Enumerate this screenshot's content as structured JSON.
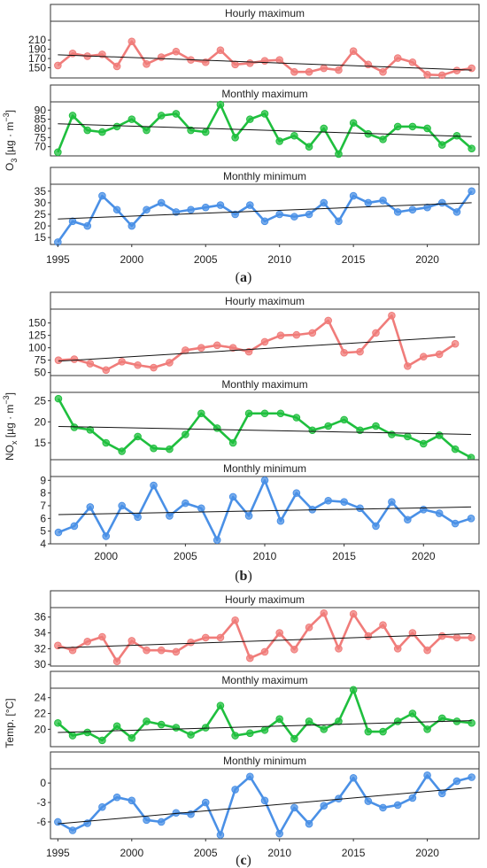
{
  "captions": [
    "(a)",
    "(b)",
    "(c)"
  ],
  "caption_letters": [
    "a",
    "b",
    "c"
  ],
  "colors": {
    "hourly_max": "#f07c7a",
    "monthly_max": "#1fbf3e",
    "monthly_min": "#4a90e6",
    "trend": "#111111"
  },
  "chart_data": [
    {
      "type": "line",
      "figure": "a",
      "ylabel": "O3 [µg·m⁻³]",
      "ylabel_base": "O",
      "ylabel_sub": "3",
      "ylabel_rest": " [µg · m",
      "ylabel_sup": "−3",
      "ylabel_close": "]",
      "x_ticks": [
        "1995",
        "2000",
        "2005",
        "2010",
        "2015",
        "2020"
      ],
      "xlim": [
        1994.5,
        2023.5
      ],
      "x": [
        1995,
        1996,
        1997,
        1998,
        1999,
        2000,
        2001,
        2002,
        2003,
        2004,
        2005,
        2006,
        2007,
        2008,
        2009,
        2010,
        2011,
        2012,
        2013,
        2014,
        2015,
        2016,
        2017,
        2018,
        2019,
        2020,
        2021,
        2022,
        2023
      ],
      "panels": [
        {
          "strip": "Hourly maximum",
          "color_key": "hourly_max",
          "ylim": [
            128,
            218
          ],
          "y_ticks": [
            "150",
            "170",
            "190",
            "210"
          ],
          "values": [
            155,
            181,
            175,
            179,
            153,
            207,
            158,
            173,
            185,
            167,
            162,
            188,
            157,
            160,
            165,
            167,
            141,
            141,
            149,
            145,
            186,
            157,
            141,
            171,
            162,
            135,
            134,
            144,
            149
          ],
          "trend": [
            178,
            145
          ]
        },
        {
          "strip": "Monthly maximum",
          "color_key": "monthly_max",
          "ylim": [
            65,
            94
          ],
          "y_ticks": [
            "70",
            "75",
            "80",
            "85",
            "90"
          ],
          "values": [
            67,
            87,
            79,
            78,
            81,
            85,
            79,
            87,
            88,
            79,
            78,
            93,
            75,
            85,
            88,
            73,
            76,
            70,
            80,
            66,
            83,
            77,
            74,
            81,
            81,
            80,
            71,
            76,
            69
          ],
          "trend": [
            82.5,
            75.5
          ]
        },
        {
          "strip": "Monthly minimum",
          "color_key": "monthly_min",
          "ylim": [
            12,
            38
          ],
          "y_ticks": [
            "15",
            "20",
            "25",
            "30",
            "35"
          ],
          "values": [
            13,
            22,
            20,
            33,
            27,
            20,
            27,
            30,
            26,
            27,
            28,
            29,
            25,
            29,
            22,
            25,
            24,
            25,
            30,
            22,
            33,
            30,
            31,
            26,
            27,
            28,
            30,
            26,
            35
          ],
          "trend": [
            23,
            30
          ]
        }
      ]
    },
    {
      "type": "line",
      "figure": "b",
      "ylabel": "NOx [µg·m⁻³]",
      "ylabel_base": "NO",
      "ylabel_sub": "x",
      "ylabel_rest": " [µg · m",
      "ylabel_sup": "−3",
      "ylabel_close": "]",
      "x_ticks": [
        "2000",
        "2005",
        "2010",
        "2015",
        "2020"
      ],
      "xlim": [
        1996.5,
        2023.5
      ],
      "x": [
        1997,
        1998,
        1999,
        2000,
        2001,
        2002,
        2003,
        2004,
        2005,
        2006,
        2007,
        2008,
        2009,
        2010,
        2011,
        2012,
        2013,
        2014,
        2015,
        2016,
        2017,
        2018,
        2019,
        2020,
        2021,
        2022,
        2023
      ],
      "panels": [
        {
          "strip": "Hourly maximum",
          "color_key": "hourly_max",
          "ylim": [
            44,
            178
          ],
          "y_ticks": [
            "50",
            "75",
            "100",
            "125",
            "150"
          ],
          "values": [
            75,
            77,
            68,
            55,
            72,
            65,
            60,
            70,
            95,
            100,
            105,
            100,
            92,
            112,
            125,
            126,
            130,
            155,
            90,
            92,
            130,
            165,
            63,
            82,
            87,
            108
          ],
          "trend": [
            73,
            122
          ],
          "x_end": 2022
        },
        {
          "strip": "Monthly maximum",
          "color_key": "monthly_max",
          "ylim": [
            11,
            27
          ],
          "y_ticks": [
            "15",
            "20",
            "25"
          ],
          "values": [
            25.5,
            18.7,
            18.1,
            15,
            13,
            16.5,
            13.7,
            13.5,
            17,
            22,
            18.5,
            15,
            22,
            22,
            22,
            21,
            18,
            19,
            20.5,
            18,
            19,
            17,
            16.5,
            14.8,
            16.8,
            13.5,
            11.5
          ],
          "trend": [
            18.9,
            17
          ]
        },
        {
          "strip": "Monthly minimum",
          "color_key": "monthly_min",
          "ylim": [
            4,
            9.3
          ],
          "y_ticks": [
            "4",
            "5",
            "6",
            "7",
            "8",
            "9"
          ],
          "values": [
            4.9,
            5.4,
            6.9,
            4.6,
            7,
            6.1,
            8.6,
            6.2,
            7.2,
            6.8,
            4.3,
            7.7,
            6.2,
            9,
            5.8,
            8,
            6.7,
            7.4,
            7.3,
            6.8,
            5.4,
            7.3,
            5.9,
            6.7,
            6.4,
            5.6,
            6
          ],
          "trend": [
            6.3,
            6.9
          ]
        }
      ]
    },
    {
      "type": "line",
      "figure": "c",
      "ylabel": "Temp. [°C]",
      "ylabel_base": "Temp. [°C]",
      "ylabel_sub": "",
      "ylabel_rest": "",
      "ylabel_sup": "",
      "ylabel_close": "",
      "x_ticks": [
        "1995",
        "2000",
        "2005",
        "2010",
        "2015",
        "2020"
      ],
      "xlim": [
        1994.5,
        2023.5
      ],
      "x": [
        1995,
        1996,
        1997,
        1998,
        1999,
        2000,
        2001,
        2002,
        2003,
        2004,
        2005,
        2006,
        2007,
        2008,
        2009,
        2010,
        2011,
        2012,
        2013,
        2014,
        2015,
        2016,
        2017,
        2018,
        2019,
        2020,
        2021,
        2022,
        2023
      ],
      "panels": [
        {
          "strip": "Hourly maximum",
          "color_key": "hourly_max",
          "ylim": [
            29.8,
            37.2
          ],
          "y_ticks": [
            "30",
            "32",
            "34",
            "36"
          ],
          "values": [
            32.4,
            31.8,
            32.9,
            33.5,
            30.4,
            33,
            31.8,
            31.8,
            31.6,
            32.8,
            33.4,
            33.4,
            35.6,
            30.8,
            31.6,
            34,
            31.9,
            34.7,
            36.5,
            32,
            36.4,
            33.6,
            35,
            32,
            34,
            31.8,
            33.6,
            33.4,
            33.4
          ],
          "trend": [
            32.1,
            33.9
          ]
        },
        {
          "strip": "Monthly maximum",
          "color_key": "monthly_max",
          "ylim": [
            17.8,
            25.2
          ],
          "y_ticks": [
            "20",
            "22",
            "24"
          ],
          "values": [
            20.8,
            19.2,
            19.6,
            18.6,
            20.4,
            18.9,
            21,
            20.6,
            20.2,
            19.3,
            20.2,
            23,
            19.2,
            19.5,
            19.9,
            21.3,
            18.8,
            21,
            20,
            21,
            25,
            19.7,
            19.7,
            21,
            22,
            20,
            21.4,
            21,
            20.8
          ],
          "trend": [
            19.6,
            21.1
          ]
        },
        {
          "strip": "Monthly minimum",
          "color_key": "monthly_min",
          "ylim": [
            -8.6,
            2.2
          ],
          "y_ticks": [
            "-6",
            "-3",
            "0"
          ],
          "values": [
            -6,
            -7.3,
            -6.2,
            -3.7,
            -2.2,
            -2.7,
            -5.7,
            -6,
            -4.6,
            -4.8,
            -3,
            -8,
            -1,
            1,
            -2.7,
            -7.8,
            -3.8,
            -6.3,
            -3.5,
            -2.4,
            0.8,
            -2.8,
            -3.8,
            -3.4,
            -2.3,
            1.2,
            -1.6,
            0.3,
            0.9
          ],
          "trend": [
            -6.3,
            -0.7
          ]
        }
      ]
    }
  ]
}
